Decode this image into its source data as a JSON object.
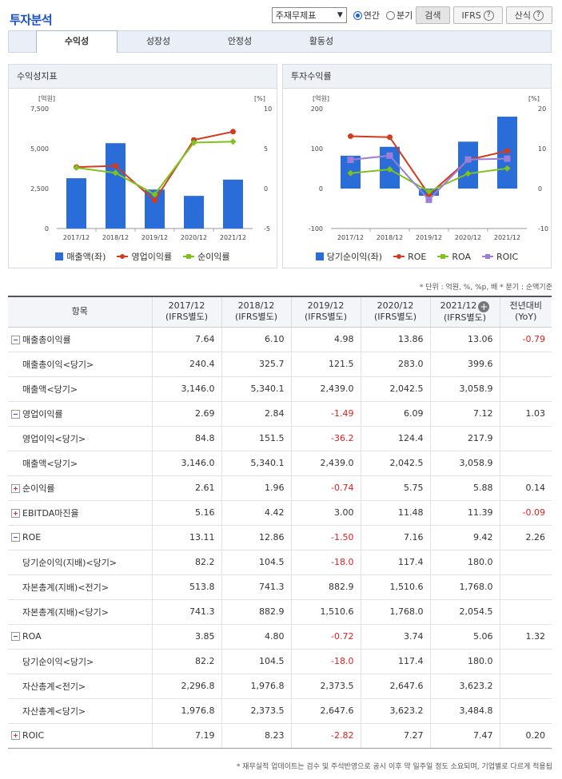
{
  "title": "투자분석",
  "controls": {
    "select_value": "주재무제표",
    "radio_annual": "연간",
    "radio_quarter": "분기",
    "search": "검색",
    "ifrs": "IFRS",
    "formula": "산식"
  },
  "tabs": [
    "수익성",
    "성장성",
    "안정성",
    "활동성"
  ],
  "icons": {
    "help": "?",
    "expand_column": "+"
  },
  "charts": [
    {
      "title": "수익성지표",
      "chart_data": {
        "type": "bar",
        "categories": [
          "2017/12",
          "2018/12",
          "2019/12",
          "2020/12",
          "2021/12"
        ],
        "left_axis": {
          "unit": "[억원]",
          "ticks": [
            "7,500",
            "5,000",
            "2,500",
            "0"
          ],
          "range": [
            0,
            7500
          ]
        },
        "right_axis": {
          "unit": "[%]",
          "ticks": [
            "10",
            "5",
            "0",
            "-5"
          ],
          "range": [
            -5,
            10
          ]
        },
        "series": [
          {
            "name": "매출액(좌)",
            "type": "bar",
            "axis": "left",
            "color": "#2a6dd8",
            "values": [
              3146.0,
              5340.1,
              2439.0,
              2042.5,
              3058.9
            ]
          },
          {
            "name": "영업이익률",
            "type": "line",
            "axis": "right",
            "color": "#d23c1e",
            "marker": "circle",
            "values": [
              2.69,
              2.84,
              -1.49,
              6.09,
              7.12
            ]
          },
          {
            "name": "순이익률",
            "type": "line",
            "axis": "right",
            "color": "#7dc21d",
            "marker": "diamond",
            "values": [
              2.61,
              1.96,
              -0.74,
              5.75,
              5.88
            ]
          }
        ]
      }
    },
    {
      "title": "투자수익률",
      "chart_data": {
        "type": "bar",
        "categories": [
          "2017/12",
          "2018/12",
          "2019/12",
          "2020/12",
          "2021/12"
        ],
        "left_axis": {
          "unit": "[억원]",
          "ticks": [
            "200",
            "100",
            "0",
            "-100"
          ],
          "range": [
            -100,
            200
          ]
        },
        "right_axis": {
          "unit": "[%]",
          "ticks": [
            "20",
            "10",
            "0",
            "-10"
          ],
          "range": [
            -10,
            20
          ]
        },
        "series": [
          {
            "name": "당기순이익(좌)",
            "type": "bar",
            "axis": "left",
            "color": "#2a6dd8",
            "values": [
              82.2,
              104.5,
              -18.0,
              117.4,
              180.0
            ]
          },
          {
            "name": "ROE",
            "type": "line",
            "axis": "right",
            "color": "#d23c1e",
            "marker": "circle",
            "values": [
              13.11,
              12.86,
              -1.5,
              7.16,
              9.42
            ]
          },
          {
            "name": "ROA",
            "type": "line",
            "axis": "right",
            "color": "#7dc21d",
            "marker": "diamond",
            "values": [
              3.85,
              4.8,
              -0.72,
              3.74,
              5.06
            ]
          },
          {
            "name": "ROIC",
            "type": "line",
            "axis": "right",
            "color": "#9c7fd6",
            "marker": "square",
            "values": [
              7.19,
              8.23,
              -2.82,
              7.27,
              7.47
            ]
          }
        ]
      }
    }
  ],
  "unit_note": "* 단위 : 억원, %, %p, 배   * 분기 : 순액기준",
  "table": {
    "headers": [
      {
        "l1": "항목",
        "l2": ""
      },
      {
        "l1": "2017/12",
        "l2": "(IFRS별도)"
      },
      {
        "l1": "2018/12",
        "l2": "(IFRS별도)"
      },
      {
        "l1": "2019/12",
        "l2": "(IFRS별도)"
      },
      {
        "l1": "2020/12",
        "l2": "(IFRS별도)"
      },
      {
        "l1": "2021/12",
        "l2": "(IFRS별도)"
      },
      {
        "l1": "전년대비",
        "l2": "(YoY)"
      }
    ],
    "rows": [
      {
        "label": "매출총이익률",
        "toggle": "minus",
        "values": [
          "7.64",
          "6.10",
          "4.98",
          "13.86",
          "13.06"
        ],
        "yoy": "-0.79"
      },
      {
        "label": "매출총이익<당기>",
        "sub": true,
        "values": [
          "240.4",
          "325.7",
          "121.5",
          "283.0",
          "399.6"
        ],
        "yoy": ""
      },
      {
        "label": "매출액<당기>",
        "sub": true,
        "values": [
          "3,146.0",
          "5,340.1",
          "2,439.0",
          "2,042.5",
          "3,058.9"
        ],
        "yoy": ""
      },
      {
        "label": "영업이익률",
        "toggle": "minus",
        "values": [
          "2.69",
          "2.84",
          "-1.49",
          "6.09",
          "7.12"
        ],
        "yoy": "1.03"
      },
      {
        "label": "영업이익<당기>",
        "sub": true,
        "values": [
          "84.8",
          "151.5",
          "-36.2",
          "124.4",
          "217.9"
        ],
        "yoy": ""
      },
      {
        "label": "매출액<당기>",
        "sub": true,
        "values": [
          "3,146.0",
          "5,340.1",
          "2,439.0",
          "2,042.5",
          "3,058.9"
        ],
        "yoy": ""
      },
      {
        "label": "순이익률",
        "toggle": "plus",
        "values": [
          "2.61",
          "1.96",
          "-0.74",
          "5.75",
          "5.88"
        ],
        "yoy": "0.14"
      },
      {
        "label": "EBITDA마진율",
        "toggle": "plus",
        "values": [
          "5.16",
          "4.42",
          "3.00",
          "11.48",
          "11.39"
        ],
        "yoy": "-0.09"
      },
      {
        "label": "ROE",
        "toggle": "minus",
        "values": [
          "13.11",
          "12.86",
          "-1.50",
          "7.16",
          "9.42"
        ],
        "yoy": "2.26"
      },
      {
        "label": "당기순이익(지배)<당기>",
        "sub": true,
        "values": [
          "82.2",
          "104.5",
          "-18.0",
          "117.4",
          "180.0"
        ],
        "yoy": ""
      },
      {
        "label": "자본총계(지배)<전기>",
        "sub": true,
        "values": [
          "513.8",
          "741.3",
          "882.9",
          "1,510.6",
          "1,768.0"
        ],
        "yoy": ""
      },
      {
        "label": "자본총계(지배)<당기>",
        "sub": true,
        "values": [
          "741.3",
          "882.9",
          "1,510.6",
          "1,768.0",
          "2,054.5"
        ],
        "yoy": ""
      },
      {
        "label": "ROA",
        "toggle": "minus",
        "values": [
          "3.85",
          "4.80",
          "-0.72",
          "3.74",
          "5.06"
        ],
        "yoy": "1.32"
      },
      {
        "label": "당기순이익<당기>",
        "sub": true,
        "values": [
          "82.2",
          "104.5",
          "-18.0",
          "117.4",
          "180.0"
        ],
        "yoy": ""
      },
      {
        "label": "자산총계<전기>",
        "sub": true,
        "values": [
          "2,296.8",
          "1,976.8",
          "2,373.5",
          "2,647.6",
          "3,623.2"
        ],
        "yoy": ""
      },
      {
        "label": "자산총계<당기>",
        "sub": true,
        "values": [
          "1,976.8",
          "2,373.5",
          "2,647.6",
          "3,623.2",
          "3,484.8"
        ],
        "yoy": ""
      },
      {
        "label": "ROIC",
        "toggle": "plus",
        "values": [
          "7.19",
          "8.23",
          "-2.82",
          "7.27",
          "7.47"
        ],
        "yoy": "0.20"
      }
    ]
  },
  "footnote": "* 재무실적 업데이트는 검수 및 주석반영으로 공시 이후 약 일주일 정도 소요되며, 기업별로 다르게 적용됩"
}
